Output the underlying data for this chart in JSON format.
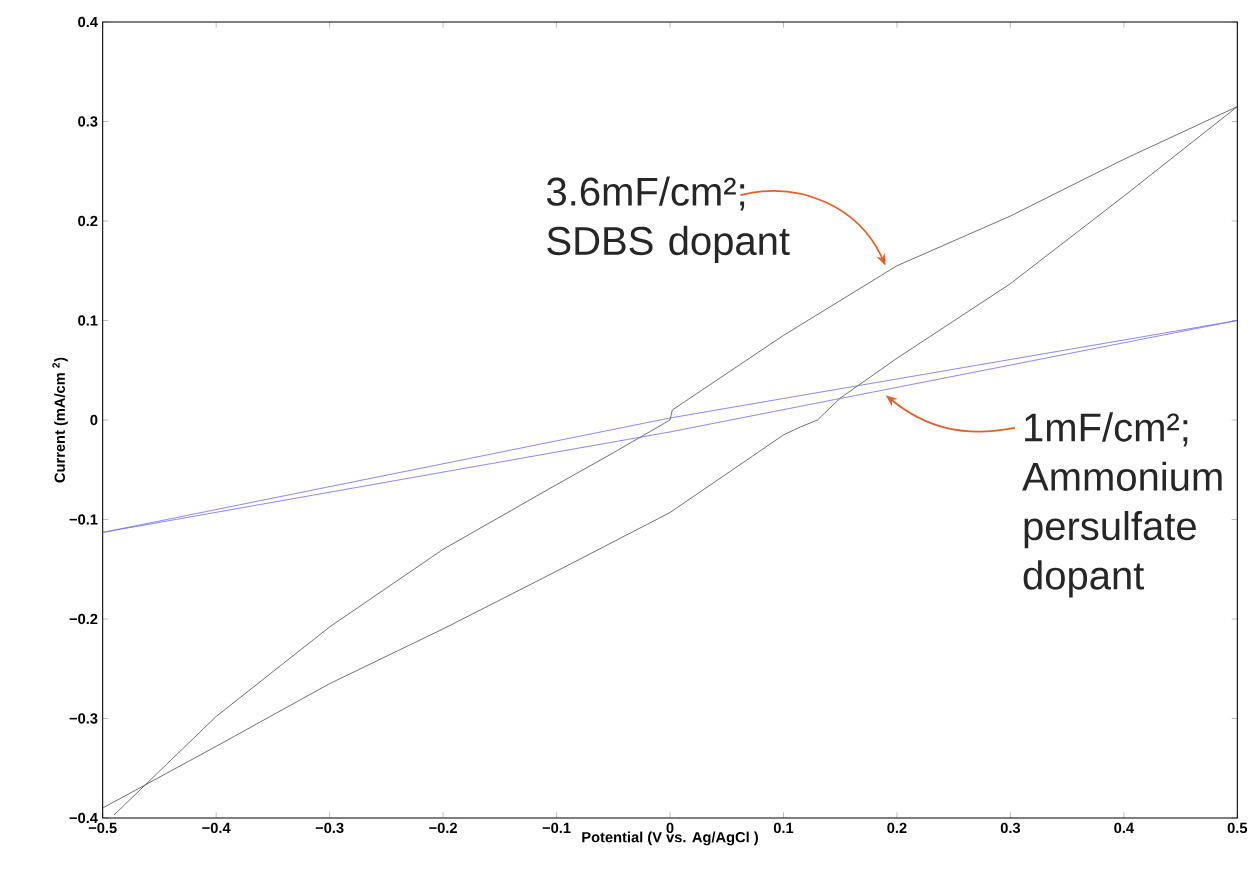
{
  "chart_data": {
    "type": "line",
    "xlabel": "Potential (V vs. Ag/AgCl )",
    "ylabel": "Current (mA/cm $^{2}$)",
    "xlim": [
      -0.5,
      0.5
    ],
    "ylim": [
      -0.4,
      0.4
    ],
    "xticks": [
      {
        "value": -0.5,
        "label": "−0.5"
      },
      {
        "value": -0.4,
        "label": "−0.4"
      },
      {
        "value": -0.3,
        "label": "−0.3"
      },
      {
        "value": -0.2,
        "label": "−0.2"
      },
      {
        "value": -0.1,
        "label": "−0.1"
      },
      0,
      0.1,
      0.2,
      0.3,
      0.4,
      0.5
    ],
    "yticks": [
      {
        "value": -0.4,
        "label": "−0.4"
      },
      {
        "value": -0.3,
        "label": "−0.3"
      },
      {
        "value": -0.2,
        "label": "−0.2"
      },
      {
        "value": -0.1,
        "label": "−0.1"
      },
      0,
      0.1,
      0.2,
      0.3,
      0.4
    ],
    "grid": false,
    "marker": "none",
    "line_style": "solid",
    "series": [
      {
        "color": "#4d4d4d",
        "x": [
          -0.49,
          -0.4,
          -0.3,
          -0.2,
          -0.1,
          -0.05,
          0,
          0.002,
          0.1,
          0.2,
          0.3,
          0.4,
          0.5,
          0.4,
          0.3,
          0.2,
          0.15,
          0.13,
          0.115,
          0.1,
          0,
          -0.1,
          -0.2,
          -0.3,
          -0.4,
          -0.5
        ],
        "values": [
          -0.397,
          -0.298,
          -0.208,
          -0.13,
          -0.065,
          -0.033,
          0,
          0.01,
          0.085,
          0.155,
          0.205,
          0.262,
          0.315,
          0.225,
          0.137,
          0.062,
          0.022,
          0.0,
          -0.007,
          -0.015,
          -0.093,
          -0.152,
          -0.21,
          -0.265,
          -0.328,
          -0.39
        ]
      },
      {
        "color": "#6b6bff",
        "x": [
          -0.5,
          0,
          0.5
        ],
        "values": [
          -0.113,
          0.002,
          0.1
        ]
      },
      {
        "color": "#6b6bff",
        "x": [
          -0.5,
          0,
          0.5
        ],
        "values": [
          -0.113,
          -0.012,
          0.1
        ]
      }
    ],
    "annotations": [
      "3.6mF/cm²; SDBS dopant",
      "1mF/cm²; Ammonium persulfate dopant"
    ]
  }
}
